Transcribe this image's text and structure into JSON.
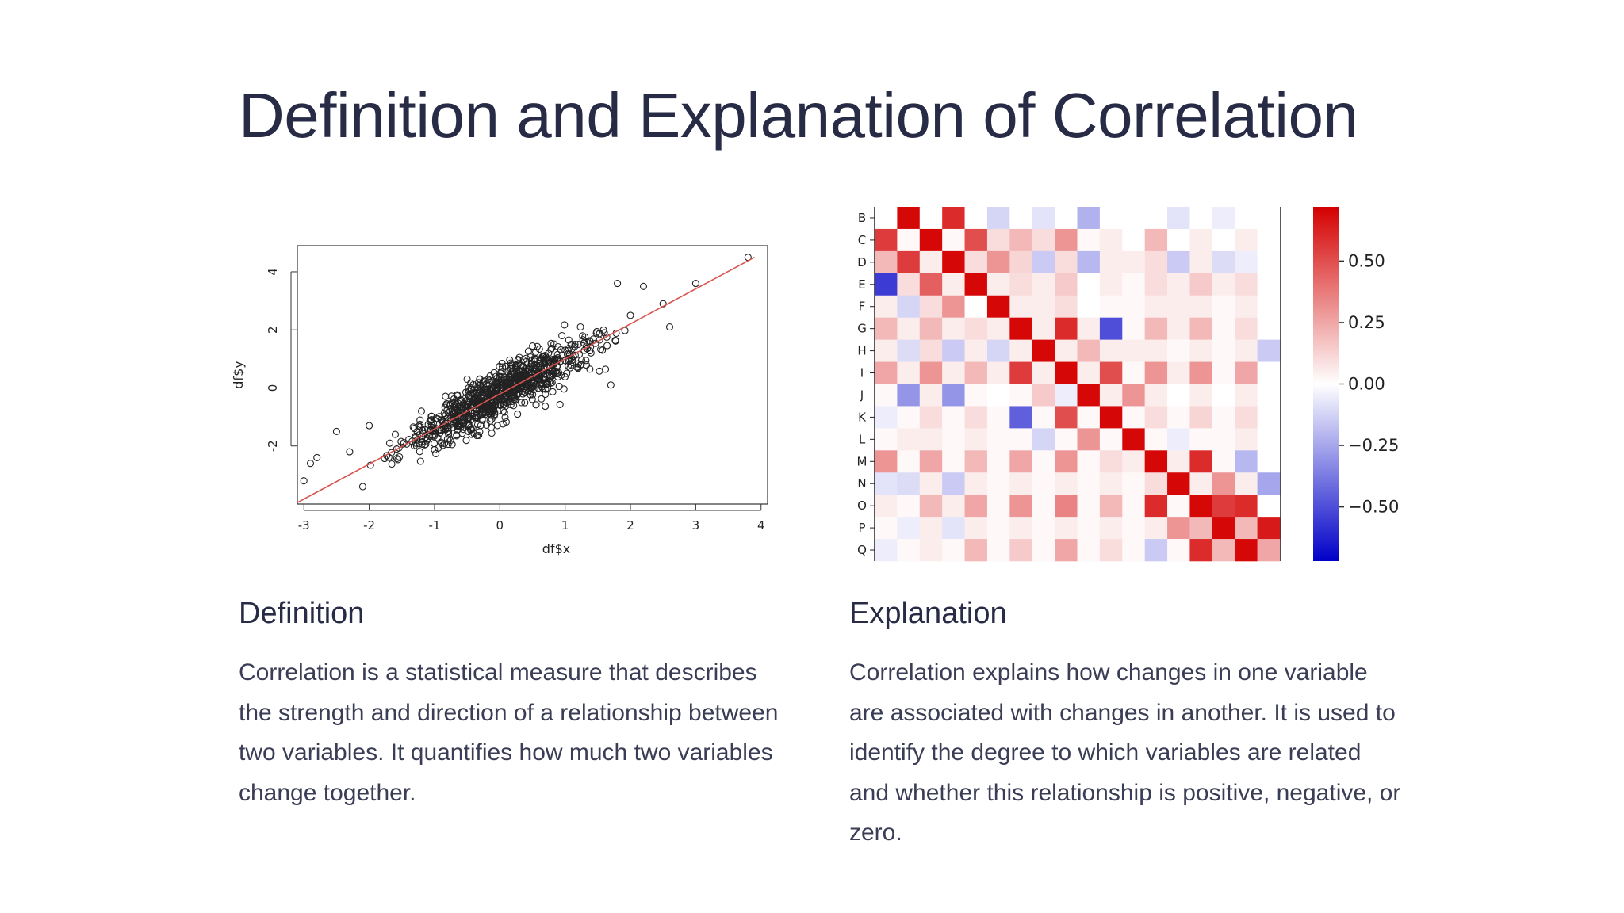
{
  "page": {
    "title": "Definition and Explanation of Correlation"
  },
  "definition": {
    "heading": "Definition",
    "body": "Correlation is a statistical measure that describes the strength and direction of a relationship between two variables. It quantifies how much two variables change together."
  },
  "explanation": {
    "heading": "Explanation",
    "body": "Correlation explains how changes in one variable are associated with changes in another. It is used to identify the degree to which variables are related and whether this relationship is positive, negative, or zero."
  },
  "chart_data": [
    {
      "type": "scatter",
      "title": "",
      "xlabel": "df$x",
      "ylabel": "df$y",
      "xlim": [
        -3.1,
        4.1
      ],
      "ylim": [
        -4.0,
        4.9
      ],
      "xticks": [
        "-3",
        "-2",
        "-1",
        "0",
        "1",
        "2",
        "3",
        "4"
      ],
      "yticks": [
        "-2",
        "0",
        "2",
        "4"
      ],
      "grid": false,
      "fit_line": {
        "color": "#d9534f",
        "x": [
          -3.1,
          3.9
        ],
        "y": [
          -3.95,
          4.5
        ]
      },
      "point_count_estimate": 900,
      "points_sample": [
        {
          "x": -3.0,
          "y": -3.2
        },
        {
          "x": -2.9,
          "y": -2.6
        },
        {
          "x": -2.8,
          "y": -2.4
        },
        {
          "x": -2.5,
          "y": -1.5
        },
        {
          "x": -2.3,
          "y": -2.2
        },
        {
          "x": -2.0,
          "y": -1.3
        },
        {
          "x": -1.6,
          "y": -1.6
        },
        {
          "x": -1.2,
          "y": -0.8
        },
        {
          "x": -0.9,
          "y": -1.1
        },
        {
          "x": -0.5,
          "y": 0.3
        },
        {
          "x": 0.0,
          "y": 0.1
        },
        {
          "x": 0.4,
          "y": 0.9
        },
        {
          "x": 0.8,
          "y": 0.6
        },
        {
          "x": 1.2,
          "y": 1.5
        },
        {
          "x": 1.6,
          "y": 1.9
        },
        {
          "x": 1.8,
          "y": 3.6
        },
        {
          "x": 2.0,
          "y": 2.5
        },
        {
          "x": 2.2,
          "y": 3.5
        },
        {
          "x": 2.5,
          "y": 2.9
        },
        {
          "x": 2.6,
          "y": 2.1
        },
        {
          "x": 3.0,
          "y": 3.6
        },
        {
          "x": 3.8,
          "y": 4.5
        },
        {
          "x": 1.7,
          "y": 0.1
        },
        {
          "x": -2.1,
          "y": -3.4
        }
      ],
      "point_color": "#222222"
    },
    {
      "type": "heatmap",
      "title": "",
      "row_labels": [
        "B",
        "C",
        "D",
        "E",
        "F",
        "G",
        "H",
        "I",
        "J",
        "K",
        "L",
        "M",
        "N",
        "O",
        "P",
        "Q"
      ],
      "col_count": 18,
      "colorbar": {
        "ticks": [
          "0.50",
          "0.25",
          "0.00",
          "−0.25",
          "−0.50"
        ],
        "range": [
          -0.72,
          0.72
        ],
        "colors": [
          "#0000c8",
          "#ffffff",
          "#d40000"
        ]
      },
      "values": [
        [
          0.0,
          0.7,
          0.0,
          0.6,
          0.0,
          -0.12,
          0.0,
          -0.08,
          0.0,
          -0.22,
          0.0,
          0.0,
          0.0,
          -0.08,
          0.0,
          -0.05,
          0.0,
          0.0
        ],
        [
          0.55,
          0.02,
          0.7,
          0.02,
          0.5,
          0.1,
          0.2,
          0.1,
          0.3,
          0.02,
          0.05,
          0.0,
          0.2,
          0.0,
          0.05,
          0.0,
          0.05,
          0.0
        ],
        [
          0.2,
          0.55,
          0.05,
          0.7,
          0.1,
          0.3,
          0.12,
          -0.15,
          0.1,
          -0.2,
          0.05,
          0.05,
          0.1,
          -0.15,
          0.05,
          -0.1,
          -0.05,
          0.0
        ],
        [
          -0.55,
          0.1,
          0.45,
          0.05,
          0.7,
          0.05,
          0.1,
          0.05,
          0.15,
          0.0,
          0.05,
          0.02,
          0.1,
          0.05,
          0.15,
          0.05,
          0.1,
          0.0
        ],
        [
          0.05,
          -0.12,
          0.1,
          0.3,
          0.0,
          0.7,
          0.05,
          0.05,
          0.1,
          0.0,
          0.02,
          0.02,
          0.05,
          0.05,
          0.05,
          0.02,
          0.05,
          0.0
        ],
        [
          0.2,
          0.05,
          0.2,
          0.05,
          0.1,
          0.05,
          0.7,
          0.05,
          0.6,
          0.05,
          -0.5,
          0.02,
          0.2,
          0.05,
          0.2,
          0.02,
          0.1,
          0.0
        ],
        [
          0.05,
          -0.1,
          0.1,
          -0.15,
          0.05,
          -0.12,
          0.05,
          0.7,
          0.05,
          0.2,
          0.05,
          0.05,
          0.05,
          0.02,
          0.05,
          0.02,
          0.05,
          -0.15
        ],
        [
          0.25,
          0.05,
          0.3,
          0.05,
          0.2,
          0.05,
          0.55,
          0.05,
          0.7,
          0.05,
          0.5,
          0.02,
          0.3,
          0.05,
          0.3,
          0.02,
          0.25,
          0.0
        ],
        [
          0.02,
          -0.3,
          0.05,
          -0.3,
          0.02,
          0.0,
          0.02,
          0.15,
          -0.05,
          0.7,
          0.05,
          0.3,
          0.05,
          0.0,
          0.05,
          0.0,
          0.05,
          0.0
        ],
        [
          -0.05,
          0.02,
          0.1,
          0.02,
          0.1,
          0.02,
          -0.45,
          0.02,
          0.5,
          0.02,
          0.7,
          0.02,
          0.1,
          0.02,
          0.12,
          0.02,
          0.1,
          0.0
        ],
        [
          0.02,
          0.05,
          0.05,
          0.02,
          0.05,
          0.02,
          0.02,
          -0.12,
          0.02,
          0.3,
          0.02,
          0.7,
          0.02,
          -0.05,
          0.02,
          0.02,
          0.05,
          0.0
        ],
        [
          0.3,
          0.02,
          0.25,
          0.02,
          0.2,
          0.02,
          0.25,
          0.02,
          0.3,
          0.02,
          0.1,
          0.05,
          0.7,
          0.05,
          0.6,
          0.02,
          -0.2,
          0.0
        ],
        [
          -0.08,
          -0.1,
          0.05,
          -0.15,
          0.05,
          0.02,
          0.05,
          0.02,
          0.05,
          0.02,
          0.05,
          0.02,
          0.1,
          0.7,
          0.05,
          0.3,
          0.05,
          -0.25
        ],
        [
          0.05,
          0.02,
          0.2,
          0.05,
          0.25,
          0.02,
          0.3,
          0.02,
          0.35,
          0.02,
          0.2,
          0.02,
          0.6,
          0.02,
          0.7,
          0.55,
          0.6,
          0.0
        ],
        [
          0.02,
          -0.05,
          0.05,
          -0.08,
          0.05,
          0.02,
          0.05,
          0.02,
          0.05,
          0.02,
          0.05,
          0.02,
          0.05,
          0.3,
          0.2,
          0.7,
          0.2,
          0.65
        ],
        [
          -0.05,
          0.02,
          0.05,
          0.02,
          0.2,
          0.02,
          0.15,
          0.02,
          0.25,
          0.02,
          0.1,
          0.02,
          -0.15,
          0.02,
          0.6,
          0.2,
          0.7,
          0.25
        ]
      ]
    }
  ]
}
